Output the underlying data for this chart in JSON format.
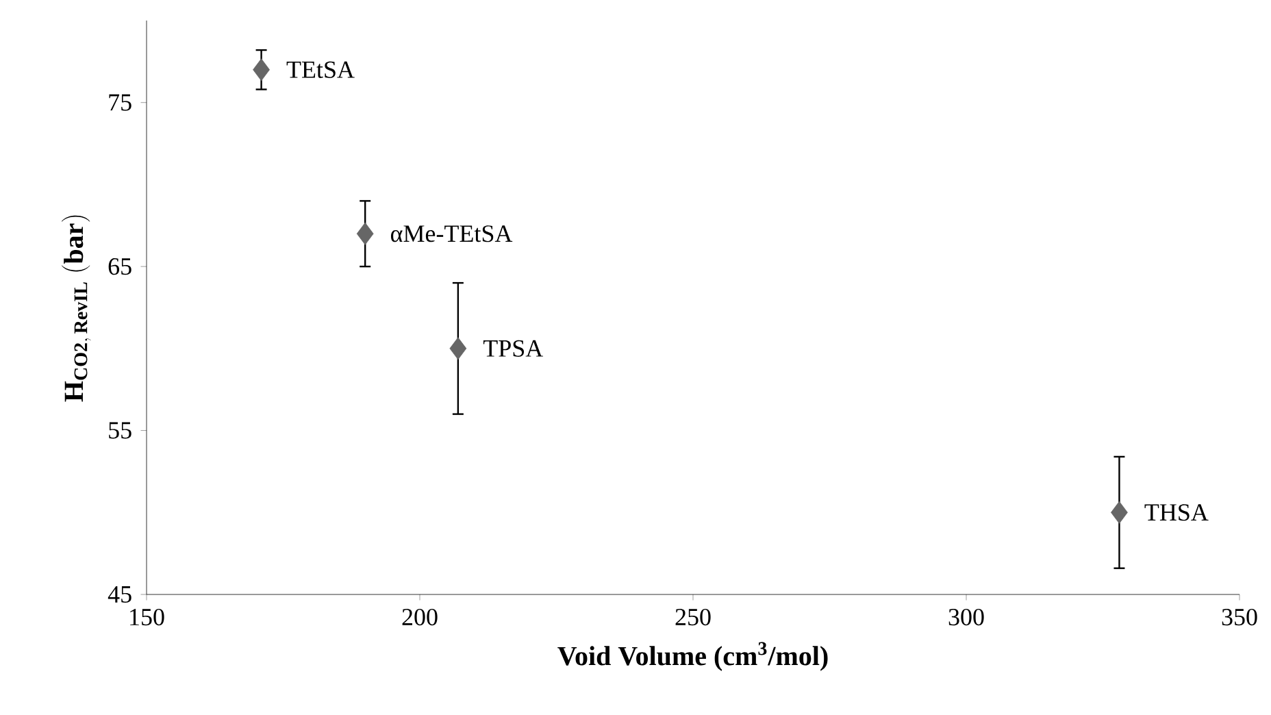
{
  "chart_data": {
    "type": "scatter",
    "xlabel": "Void Volume (cm$^{3}$/mol)",
    "ylabel": "\\mathbf{H_{CO2,\\,RevIL}\\ (bar)}",
    "xlim": [
      150,
      350
    ],
    "ylim": [
      45,
      80
    ],
    "xticks": [
      150,
      200,
      250,
      300,
      350
    ],
    "yticks": [
      45,
      55,
      65,
      75
    ],
    "marker": "diamond",
    "series": [
      {
        "color": "#666666",
        "x": [
          171,
          190,
          207,
          328
        ],
        "values": [
          77,
          67,
          60,
          50
        ],
        "errors": [
          1.2,
          2,
          4,
          3.4
        ]
      }
    ],
    "annotations": [
      {
        "text": "TEtSA",
        "x": 171,
        "y": 77
      },
      {
        "text": "αMe-TEtSA",
        "x": 190,
        "y": 67
      },
      {
        "text": "TPSA",
        "x": 207,
        "y": 60
      },
      {
        "text": "THSA",
        "x": 328,
        "y": 50
      }
    ]
  }
}
